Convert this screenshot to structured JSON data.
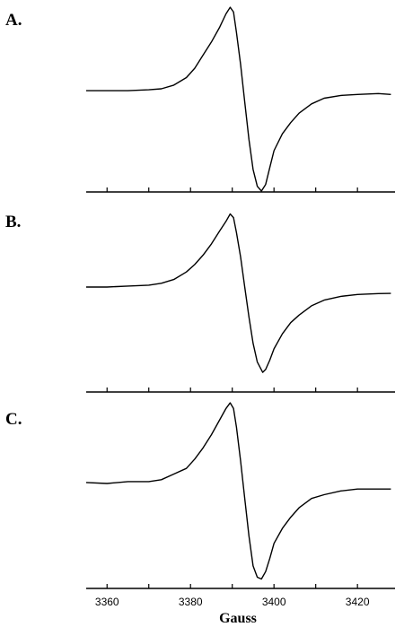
{
  "chart_data": [
    {
      "type": "line",
      "label": "A.",
      "color": "#000000",
      "xlim": [
        3355,
        3429
      ],
      "ylim": [
        0,
        100
      ],
      "x": [
        3355,
        3360,
        3365,
        3370,
        3373,
        3376,
        3379,
        3381,
        3383,
        3385,
        3387,
        3388.5,
        3389.5,
        3390.3,
        3391,
        3392,
        3393,
        3394,
        3395,
        3396,
        3397,
        3398,
        3399,
        3400,
        3402,
        3404,
        3406,
        3409,
        3412,
        3416,
        3420,
        3425,
        3428
      ],
      "values": [
        54,
        54,
        54,
        54.5,
        55,
        57,
        61,
        66,
        73,
        80,
        88,
        95,
        98.5,
        96,
        85,
        68,
        48,
        28,
        12,
        3,
        0.5,
        4,
        13,
        22,
        31,
        37,
        42,
        47,
        50,
        51.5,
        52,
        52.5,
        52
      ]
    },
    {
      "type": "line",
      "label": "B.",
      "color": "#000000",
      "xlim": [
        3355,
        3429
      ],
      "ylim": [
        0,
        100
      ],
      "x": [
        3355,
        3360,
        3365,
        3370,
        3373,
        3376,
        3379,
        3381,
        3383,
        3385,
        3387,
        3388.5,
        3389.5,
        3390.3,
        3391,
        3392,
        3393,
        3394,
        3395,
        3396,
        3397.3,
        3398,
        3399,
        3400,
        3402,
        3404,
        3406,
        3409,
        3412,
        3416,
        3420,
        3425,
        3428
      ],
      "values": [
        56,
        56,
        56.5,
        57,
        58,
        60,
        64,
        68,
        73,
        79,
        86,
        91,
        95,
        93,
        85,
        72,
        56,
        40,
        26,
        16,
        10.5,
        12,
        17,
        23,
        31,
        37,
        41,
        46,
        49,
        51,
        52,
        52.5,
        52.6
      ]
    },
    {
      "type": "line",
      "label": "C.",
      "color": "#000000",
      "xlim": [
        3355,
        3429
      ],
      "ylim": [
        0,
        100
      ],
      "x": [
        3355,
        3360,
        3365,
        3370,
        3373,
        3376,
        3379,
        3381,
        3383,
        3385,
        3387,
        3388.5,
        3389.5,
        3390.3,
        3391,
        3392,
        3393,
        3394,
        3395,
        3396,
        3397,
        3398,
        3399,
        3400,
        3402,
        3404,
        3406,
        3409,
        3412,
        3416,
        3420,
        3425,
        3428
      ],
      "values": [
        56.5,
        56,
        57,
        57,
        58,
        61,
        64,
        69,
        75,
        82,
        90,
        96,
        99,
        96,
        86,
        68,
        48,
        28,
        12,
        6,
        5,
        9,
        16,
        24,
        32,
        38,
        43,
        48,
        50,
        52,
        53,
        53,
        53
      ],
      "xticks": [
        3360,
        3380,
        3400,
        3420
      ],
      "xminorticks": [
        3370,
        3390,
        3410
      ],
      "xlabel": "Gauss"
    }
  ]
}
